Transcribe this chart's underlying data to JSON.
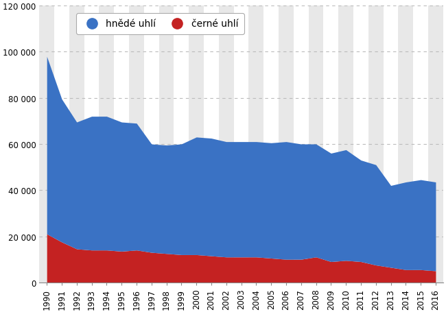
{
  "years": [
    1990,
    1991,
    1992,
    1993,
    1994,
    1995,
    1996,
    1997,
    1998,
    1999,
    2000,
    2001,
    2002,
    2003,
    2004,
    2005,
    2006,
    2007,
    2008,
    2009,
    2010,
    2011,
    2012,
    2013,
    2014,
    2015,
    2016
  ],
  "hnede_uhli": [
    77000,
    62000,
    55000,
    58000,
    58000,
    56000,
    55000,
    47000,
    47000,
    48000,
    51000,
    51000,
    50000,
    50000,
    50000,
    50000,
    51000,
    50000,
    49000,
    47000,
    48000,
    44000,
    43500,
    35500,
    38000,
    39000,
    38500
  ],
  "cerne_uhli": [
    21000,
    17500,
    14500,
    14000,
    14000,
    13500,
    14000,
    13000,
    12500,
    12000,
    12000,
    11500,
    11000,
    11000,
    11000,
    10500,
    10000,
    10000,
    11000,
    9000,
    9500,
    9000,
    7500,
    6500,
    5500,
    5500,
    5000
  ],
  "color_hnede": "#3a72c4",
  "color_cerne": "#c42222",
  "legend_label_hnede": "hnědé uhlí",
  "legend_label_cerne": "černé uhlí",
  "ylim": [
    0,
    120000
  ],
  "ytick_labels": [
    "0",
    "20 000",
    "40 000",
    "60 000",
    "80 000",
    "100 000",
    "120 000"
  ],
  "grid_color": "#bbbbbb",
  "background_color": "#ffffff",
  "column_bg_color": "#e8e8e8",
  "legend_fontsize": 10,
  "tick_fontsize": 8.5
}
